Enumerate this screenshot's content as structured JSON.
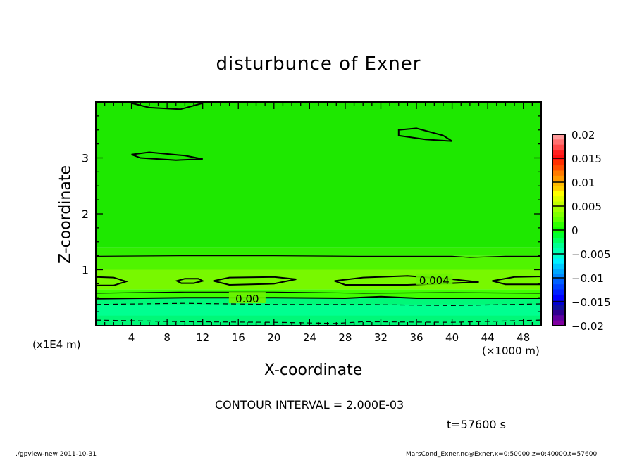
{
  "chart_data": {
    "type": "heatmap",
    "subtype": "filled-contour",
    "title": "disturbunce of Exner",
    "xlabel": "X-coordinate",
    "ylabel": "Z-coordinate",
    "x_unit_label": "(×1000 m)",
    "y_unit_label": "(x1E4 m)",
    "xlim": [
      0,
      50
    ],
    "ylim": [
      0,
      4
    ],
    "xticks": [
      4,
      8,
      12,
      16,
      20,
      24,
      28,
      32,
      36,
      40,
      44,
      48
    ],
    "yticks": [
      1,
      2,
      3
    ],
    "contour_interval_text": "CONTOUR INTERVAL = 2.000E-03",
    "time_text": "t=57600 s",
    "colorbar": {
      "range": [
        -0.02,
        0.02
      ],
      "tick_labels": [
        "0.02",
        "0.015",
        "0.01",
        "0.005",
        "0",
        "-0.005",
        "-0.01",
        "-0.015",
        "-0.02"
      ],
      "colors_top_to_bottom": [
        "#ff9a9a",
        "#ff7070",
        "#ff4a4a",
        "#ff2020",
        "#ff1010",
        "#ff3000",
        "#ff5000",
        "#ff7a00",
        "#ff9a00",
        "#ffb800",
        "#ffd000",
        "#ffff00",
        "#e0ff00",
        "#c0ff00",
        "#a0ff00",
        "#80ff00",
        "#60ff00",
        "#30ff00",
        "#10ff00",
        "#00ff30",
        "#00ff60",
        "#00ff90",
        "#00ffb0",
        "#00ffd0",
        "#00f0ff",
        "#00c8ff",
        "#00a8ff",
        "#0088ff",
        "#0060ff",
        "#0040ff",
        "#0020ff",
        "#0000ff",
        "#0000d0",
        "#1010a0",
        "#300090",
        "#6000a0",
        "#8000a0"
      ]
    },
    "bands": [
      {
        "z": [
          0,
          0.5
        ],
        "color": "#00f878"
      },
      {
        "z": [
          0.18,
          0.38
        ],
        "color": "#00ff90"
      },
      {
        "z": [
          0.5,
          0.65
        ],
        "color": "#40ff00"
      },
      {
        "z": [
          0.65,
          1.0
        ],
        "color": "#78f800"
      },
      {
        "z": [
          1.0,
          1.25
        ],
        "color": "#50f400"
      },
      {
        "z": [
          1.25,
          1.4
        ],
        "color": "#30ee00"
      },
      {
        "z": [
          1.4,
          4.0
        ],
        "color": "#1ee800"
      }
    ],
    "contours": [
      {
        "level": 0.002,
        "style": "solid",
        "points": [
          [
            0,
            1.24
          ],
          [
            10,
            1.25
          ],
          [
            20,
            1.25
          ],
          [
            30,
            1.24
          ],
          [
            40,
            1.24
          ],
          [
            42,
            1.22
          ],
          [
            46,
            1.24
          ],
          [
            50,
            1.24
          ]
        ]
      },
      {
        "level": 0.004,
        "style": "solid",
        "closed": true,
        "points": [
          [
            0,
            0.87
          ],
          [
            2,
            0.86
          ],
          [
            3.4,
            0.79
          ],
          [
            2,
            0.72
          ],
          [
            0,
            0.72
          ]
        ]
      },
      {
        "level": 0.004,
        "style": "solid",
        "closed": true,
        "points": [
          [
            9.1,
            0.8
          ],
          [
            10,
            0.84
          ],
          [
            11.5,
            0.84
          ],
          [
            12,
            0.8
          ],
          [
            11,
            0.76
          ],
          [
            9.6,
            0.76
          ]
        ]
      },
      {
        "level": 0.004,
        "style": "solid",
        "closed": true,
        "points": [
          [
            13.2,
            0.8
          ],
          [
            15,
            0.86
          ],
          [
            20,
            0.87
          ],
          [
            22.5,
            0.83
          ],
          [
            20,
            0.75
          ],
          [
            15,
            0.73
          ]
        ]
      },
      {
        "level": 0.004,
        "style": "solid",
        "closed": true,
        "points": [
          [
            26.8,
            0.8
          ],
          [
            30,
            0.86
          ],
          [
            35,
            0.89
          ],
          [
            40,
            0.83
          ],
          [
            43,
            0.78
          ],
          [
            40,
            0.76
          ],
          [
            35,
            0.73
          ],
          [
            28,
            0.73
          ]
        ]
      },
      {
        "level": 0.004,
        "style": "solid",
        "closed": true,
        "points": [
          [
            50,
            0.88
          ],
          [
            47,
            0.87
          ],
          [
            44.5,
            0.8
          ],
          [
            46,
            0.74
          ],
          [
            50,
            0.74
          ]
        ]
      },
      {
        "level": 0.002,
        "style": "solid",
        "points": [
          [
            0,
            0.58
          ],
          [
            10,
            0.6
          ],
          [
            20,
            0.6
          ],
          [
            30,
            0.58
          ],
          [
            40,
            0.59
          ],
          [
            50,
            0.58
          ]
        ]
      },
      {
        "level": 0.0,
        "style": "solid",
        "points": [
          [
            0,
            0.48
          ],
          [
            10,
            0.5
          ],
          [
            20,
            0.5
          ],
          [
            28,
            0.49
          ],
          [
            32,
            0.52
          ],
          [
            36,
            0.49
          ],
          [
            44,
            0.49
          ],
          [
            50,
            0.49
          ]
        ]
      },
      {
        "level": -0.002,
        "style": "dashed",
        "points": [
          [
            0,
            0.38
          ],
          [
            10,
            0.4
          ],
          [
            20,
            0.38
          ],
          [
            30,
            0.38
          ],
          [
            40,
            0.36
          ],
          [
            50,
            0.39
          ]
        ]
      },
      {
        "level": -0.002,
        "style": "dashed",
        "points": [
          [
            0,
            0.1
          ],
          [
            10,
            0.07
          ],
          [
            20,
            0.06
          ],
          [
            27,
            0.04
          ],
          [
            30,
            0.07
          ],
          [
            40,
            0.06
          ],
          [
            50,
            0.1
          ]
        ]
      },
      {
        "level": 0.0,
        "style": "solid",
        "closed": true,
        "points": [
          [
            4,
            3.06
          ],
          [
            6,
            3.1
          ],
          [
            10,
            3.04
          ],
          [
            12,
            2.98
          ],
          [
            9,
            2.96
          ],
          [
            5,
            3.0
          ]
        ]
      },
      {
        "level": 0.0,
        "style": "solid",
        "closed": true,
        "points": [
          [
            34,
            3.5
          ],
          [
            36,
            3.53
          ],
          [
            39,
            3.4
          ],
          [
            40,
            3.3
          ],
          [
            37,
            3.33
          ],
          [
            34,
            3.4
          ]
        ]
      },
      {
        "level": 0.0,
        "style": "solid",
        "points": [
          [
            4,
            3.98
          ],
          [
            6,
            3.9
          ],
          [
            9.5,
            3.87
          ],
          [
            12,
            3.98
          ]
        ]
      }
    ],
    "contour_labels": [
      {
        "text": "0.004",
        "x": 38,
        "z": 0.82
      },
      {
        "text": "0.00",
        "x": 17,
        "z": 0.49
      }
    ]
  },
  "footer": {
    "left": "./gpview-new  2011-10-31",
    "right": "MarsCond_Exner.nc@Exner,x=0:50000,z=0:40000,t=57600"
  }
}
